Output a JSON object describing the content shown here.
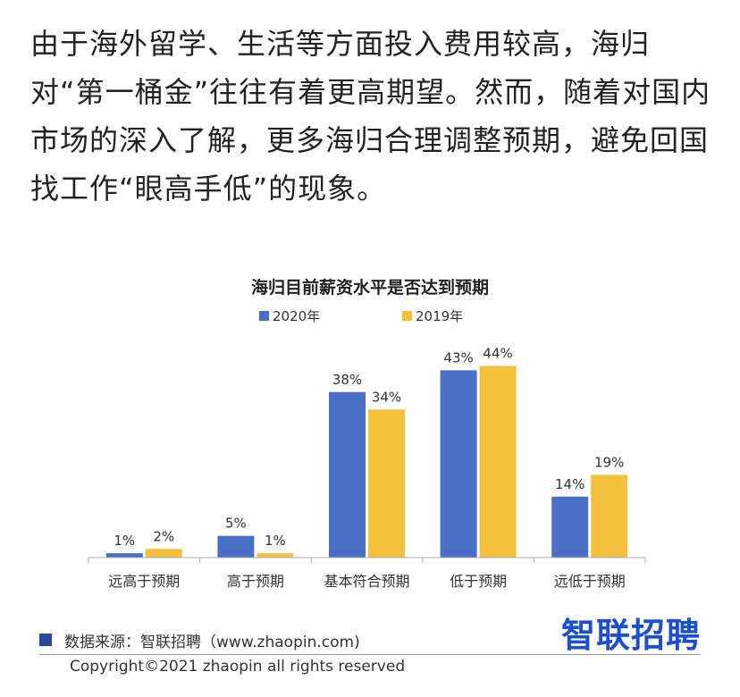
{
  "article": {
    "paragraph": "由于海外留学、生活等方面投入费用较高，海归对“第一桶金”往往有着更高期望。然而，随着对国内市场的深入了解，更多海归合理调整预期，避免回国找工作“眼高手低”的现象。"
  },
  "chart_data": {
    "type": "bar",
    "title": "海归目前薪资水平是否达到预期",
    "categories": [
      "远高于预期",
      "高于预期",
      "基本符合预期",
      "低于预期",
      "远低于预期"
    ],
    "series": [
      {
        "name": "2020年",
        "values": [
          1,
          5,
          38,
          43,
          14
        ],
        "labels": [
          "1%",
          "5%",
          "38%",
          "43%",
          "14%"
        ],
        "color": "#4a6fc9"
      },
      {
        "name": "2019年",
        "values": [
          2,
          1,
          34,
          44,
          19
        ],
        "labels": [
          "2%",
          "1%",
          "34%",
          "44%",
          "19%"
        ],
        "color": "#f4c13f"
      }
    ],
    "ylim": [
      0,
      48
    ],
    "legend": "top-center",
    "grid": false
  },
  "footer": {
    "source": "数据来源：智联招聘（www.zhaopin.com)",
    "source_marker_color": "#27489a",
    "brand": "智联招聘",
    "brand_color": "#1c4fd0",
    "copyright": "Copyright©2021 zhaopin all rights reserved"
  }
}
